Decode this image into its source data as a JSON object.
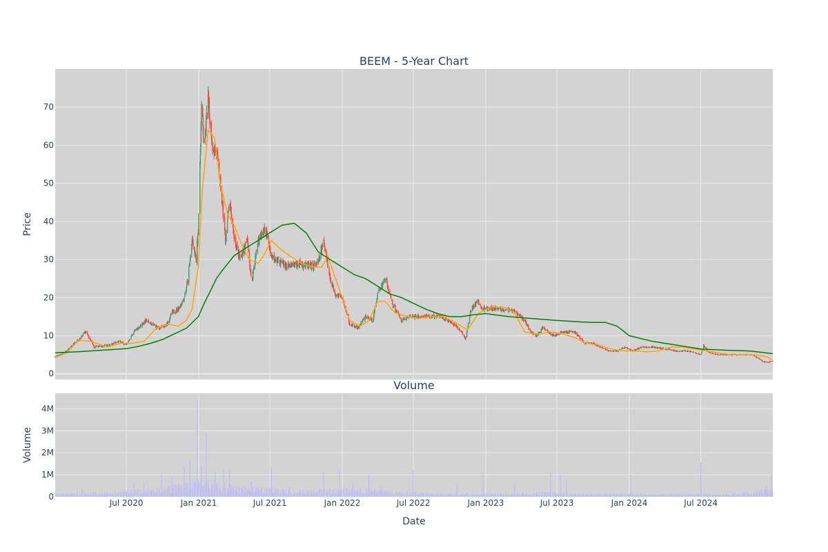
{
  "chart_data": [
    {
      "type": "candlestick",
      "title": "BEEM - 5-Year Chart",
      "ylabel": "Price",
      "xlabel": "",
      "ylim": [
        -1.5,
        80
      ],
      "yticks": [
        0,
        10,
        20,
        30,
        40,
        50,
        60,
        70
      ],
      "xlim": [
        "2020-01-02",
        "2024-12-31"
      ],
      "grid": true,
      "legend": "none",
      "colors": {
        "plot_bg": "#d3d3d3",
        "grid": "#ebebeb",
        "increasing": "#3d9970",
        "decreasing": "#ff4136",
        "ma_short": "#ffa500",
        "ma_long": "#008000"
      },
      "series": [
        {
          "kind": "candles_close_anchors",
          "x": [
            "2020-01-02",
            "2020-02-01",
            "2020-03-01",
            "2020-03-20",
            "2020-04-10",
            "2020-05-15",
            "2020-06-15",
            "2020-06-30",
            "2020-07-20",
            "2020-08-20",
            "2020-09-20",
            "2020-10-10",
            "2020-10-25",
            "2020-11-10",
            "2020-11-25",
            "2020-12-05",
            "2020-12-15",
            "2020-12-25",
            "2020-12-31",
            "2021-01-08",
            "2021-01-15",
            "2021-01-25",
            "2021-02-05",
            "2021-02-15",
            "2021-02-25",
            "2021-03-10",
            "2021-03-20",
            "2021-04-01",
            "2021-04-15",
            "2021-05-05",
            "2021-05-15",
            "2021-06-01",
            "2021-06-20",
            "2021-07-05",
            "2021-07-20",
            "2021-08-15",
            "2021-09-15",
            "2021-10-15",
            "2021-11-01",
            "2021-11-15",
            "2021-12-01",
            "2021-12-15",
            "2022-01-01",
            "2022-01-20",
            "2022-02-10",
            "2022-03-01",
            "2022-03-20",
            "2022-04-01",
            "2022-04-20",
            "2022-05-10",
            "2022-06-01",
            "2022-06-20",
            "2022-07-15",
            "2022-08-15",
            "2022-09-10",
            "2022-10-10",
            "2022-11-01",
            "2022-11-10",
            "2022-11-25",
            "2022-12-10",
            "2022-12-25",
            "2023-01-20",
            "2023-02-20",
            "2023-03-20",
            "2023-04-10",
            "2023-04-25",
            "2023-05-10",
            "2023-05-25",
            "2023-06-10",
            "2023-06-25",
            "2023-07-15",
            "2023-08-15",
            "2023-09-10",
            "2023-10-01",
            "2023-10-20",
            "2023-11-10",
            "2023-12-01",
            "2023-12-20",
            "2024-01-10",
            "2024-02-01",
            "2024-03-01",
            "2024-04-01",
            "2024-05-01",
            "2024-06-01",
            "2024-07-01",
            "2024-07-08",
            "2024-07-20",
            "2024-08-15",
            "2024-09-15",
            "2024-10-15",
            "2024-11-10",
            "2024-11-25",
            "2024-12-10",
            "2024-12-31"
          ],
          "close": [
            4.5,
            6,
            9,
            11,
            7,
            7.5,
            8.5,
            7.5,
            11,
            14,
            12,
            12.5,
            16,
            17,
            20,
            25,
            35,
            30,
            38,
            70,
            60,
            72,
            60,
            58,
            50,
            35,
            45,
            36,
            30,
            35,
            24,
            35,
            38,
            31,
            30,
            28,
            29,
            28,
            29,
            35,
            25,
            21,
            20,
            13,
            12,
            15,
            14,
            21,
            25,
            18,
            14,
            15,
            15,
            15,
            15,
            13,
            11,
            9,
            17,
            19,
            17,
            17,
            17,
            16,
            14,
            11,
            10,
            12,
            11,
            10,
            11,
            11,
            8,
            8,
            7,
            6,
            6,
            7,
            6,
            7,
            7,
            6.5,
            6,
            6,
            5,
            7.5,
            5.5,
            5,
            5,
            5,
            5,
            4,
            3,
            3.2
          ]
        },
        {
          "name": "",
          "kind": "ma_short",
          "x": [
            "2020-01-02",
            "2020-02-01",
            "2020-03-01",
            "2020-04-01",
            "2020-05-15",
            "2020-06-15",
            "2020-07-15",
            "2020-08-15",
            "2020-09-15",
            "2020-10-15",
            "2020-11-10",
            "2020-11-30",
            "2020-12-15",
            "2020-12-31",
            "2021-01-10",
            "2021-01-25",
            "2021-02-10",
            "2021-02-25",
            "2021-03-15",
            "2021-04-01",
            "2021-04-20",
            "2021-05-10",
            "2021-06-01",
            "2021-06-15",
            "2021-07-05",
            "2021-07-25",
            "2021-08-20",
            "2021-09-20",
            "2021-10-20",
            "2021-11-10",
            "2021-11-25",
            "2021-12-15",
            "2022-01-01",
            "2022-01-20",
            "2022-02-15",
            "2022-03-10",
            "2022-04-01",
            "2022-04-20",
            "2022-05-15",
            "2022-06-15",
            "2022-07-15",
            "2022-08-15",
            "2022-09-15",
            "2022-10-15",
            "2022-11-15",
            "2022-12-15",
            "2023-01-15",
            "2023-02-15",
            "2023-03-15",
            "2023-04-10",
            "2023-05-01",
            "2023-05-20",
            "2023-06-15",
            "2023-07-15",
            "2023-08-15",
            "2023-09-15",
            "2023-10-15",
            "2023-11-15",
            "2023-12-15",
            "2024-01-15",
            "2024-02-15",
            "2024-03-15",
            "2024-04-15",
            "2024-05-15",
            "2024-06-15",
            "2024-07-15",
            "2024-08-15",
            "2024-09-15",
            "2024-10-15",
            "2024-11-15",
            "2024-12-15",
            "2024-12-31"
          ],
          "y": [
            4.2,
            5.5,
            8.8,
            8.5,
            7,
            8,
            8,
            8.5,
            12,
            13,
            12.5,
            14,
            17,
            28,
            48,
            64,
            62,
            50,
            42,
            39,
            34,
            30,
            29,
            31,
            35,
            33,
            31,
            29,
            28,
            28,
            31,
            25,
            20,
            14,
            12.5,
            14,
            19,
            19,
            16,
            15,
            14.5,
            15,
            15,
            13.5,
            11.5,
            16,
            17.5,
            17.5,
            16,
            11,
            10.5,
            10.5,
            11,
            10.5,
            9.5,
            8,
            7.5,
            6.5,
            6,
            6,
            5.8,
            6,
            7,
            7,
            6.5,
            6,
            5.5,
            5,
            5,
            5,
            4.5,
            3.5
          ]
        },
        {
          "name": "",
          "kind": "ma_long",
          "x": [
            "2020-01-02",
            "2020-03-01",
            "2020-05-01",
            "2020-07-01",
            "2020-08-01",
            "2020-09-01",
            "2020-10-01",
            "2020-11-01",
            "2020-12-01",
            "2020-12-31",
            "2021-01-15",
            "2021-02-01",
            "2021-02-15",
            "2021-03-01",
            "2021-04-01",
            "2021-05-01",
            "2021-06-01",
            "2021-07-01",
            "2021-08-01",
            "2021-09-01",
            "2021-10-01",
            "2021-11-01",
            "2021-12-01",
            "2022-01-01",
            "2022-02-01",
            "2022-03-01",
            "2022-04-01",
            "2022-05-01",
            "2022-06-01",
            "2022-07-01",
            "2022-08-01",
            "2022-09-01",
            "2022-10-01",
            "2022-11-01",
            "2022-12-01",
            "2023-01-01",
            "2023-03-01",
            "2023-05-01",
            "2023-07-01",
            "2023-09-01",
            "2023-10-01",
            "2023-11-01",
            "2023-12-01",
            "2024-01-01",
            "2024-03-01",
            "2024-05-01",
            "2024-07-01",
            "2024-09-01",
            "2024-11-01",
            "2024-12-31"
          ],
          "y": [
            5.5,
            5.8,
            6.2,
            6.6,
            7.2,
            8,
            9,
            10.5,
            12,
            15,
            18.5,
            22,
            25,
            27,
            31,
            33,
            35,
            37,
            39,
            39.5,
            37,
            32,
            30,
            28,
            26,
            25,
            23,
            21,
            20,
            18.5,
            17,
            15.8,
            15,
            15,
            15.5,
            15.8,
            15,
            14.5,
            14,
            13.6,
            13.5,
            13.5,
            12.5,
            10,
            8.5,
            7.5,
            6.5,
            6.2,
            6,
            5.3
          ]
        }
      ]
    },
    {
      "type": "bar",
      "title": "Volume",
      "xlabel": "Date",
      "ylabel": "Volume",
      "ylim": [
        0,
        4.7
      ],
      "yticks": [
        0,
        1,
        2,
        3,
        4
      ],
      "ytick_labels": [
        "0",
        "1M",
        "2M",
        "3M",
        "4M"
      ],
      "xticks": [
        "2020-07-01",
        "2021-01-01",
        "2021-07-01",
        "2022-01-01",
        "2022-07-01",
        "2023-01-01",
        "2023-07-01",
        "2024-01-01",
        "2024-07-01"
      ],
      "xtick_labels": [
        "Jul 2020",
        "Jan 2021",
        "Jul 2021",
        "Jan 2022",
        "Jul 2022",
        "Jan 2023",
        "Jul 2023",
        "Jan 2024",
        "Jul 2024"
      ],
      "bar_color": "#c0c0f0",
      "volume_envelope": {
        "unit": "M",
        "x": [
          "2020-01-02",
          "2020-06-01",
          "2020-09-01",
          "2020-11-01",
          "2020-12-01",
          "2021-01-01",
          "2021-02-01",
          "2021-03-01",
          "2021-05-01",
          "2021-07-01",
          "2021-09-01",
          "2021-12-01",
          "2022-02-01",
          "2022-04-01",
          "2022-06-01",
          "2022-09-01",
          "2022-12-01",
          "2023-03-01",
          "2023-06-01",
          "2023-09-01",
          "2023-12-01",
          "2024-03-01",
          "2024-06-01",
          "2024-09-01",
          "2024-11-01",
          "2024-12-31"
        ],
        "y": [
          0.15,
          0.2,
          0.3,
          0.45,
          0.6,
          0.7,
          0.6,
          0.5,
          0.4,
          0.35,
          0.25,
          0.3,
          0.35,
          0.3,
          0.2,
          0.15,
          0.15,
          0.12,
          0.2,
          0.15,
          0.15,
          0.12,
          0.12,
          0.12,
          0.2,
          0.35
        ]
      },
      "volume_spikes": {
        "unit": "M",
        "x": [
          "2020-03-10",
          "2020-07-20",
          "2020-08-15",
          "2020-09-28",
          "2020-10-25",
          "2020-11-10",
          "2020-11-25",
          "2020-12-10",
          "2020-12-28",
          "2021-01-08",
          "2021-01-20",
          "2021-02-12",
          "2021-03-05",
          "2021-03-20",
          "2021-05-15",
          "2021-07-05",
          "2021-08-20",
          "2021-11-15",
          "2021-12-25",
          "2022-01-28",
          "2022-03-10",
          "2022-04-10",
          "2022-06-30",
          "2022-10-20",
          "2022-12-25",
          "2023-03-15",
          "2023-06-15",
          "2023-07-10",
          "2023-07-25",
          "2024-01-05",
          "2024-07-01",
          "2024-12-15",
          "2024-12-28"
        ],
        "y": [
          0.3,
          0.7,
          0.65,
          1.05,
          0.95,
          0.6,
          1.4,
          1.65,
          4.35,
          1.4,
          2.85,
          1.1,
          1.25,
          1.2,
          0.7,
          1.35,
          0.45,
          1.1,
          1.2,
          0.6,
          1.0,
          0.5,
          1.2,
          0.6,
          1.05,
          0.6,
          1.1,
          1.0,
          0.75,
          1.0,
          1.55,
          0.5,
          1.05
        ]
      }
    }
  ]
}
